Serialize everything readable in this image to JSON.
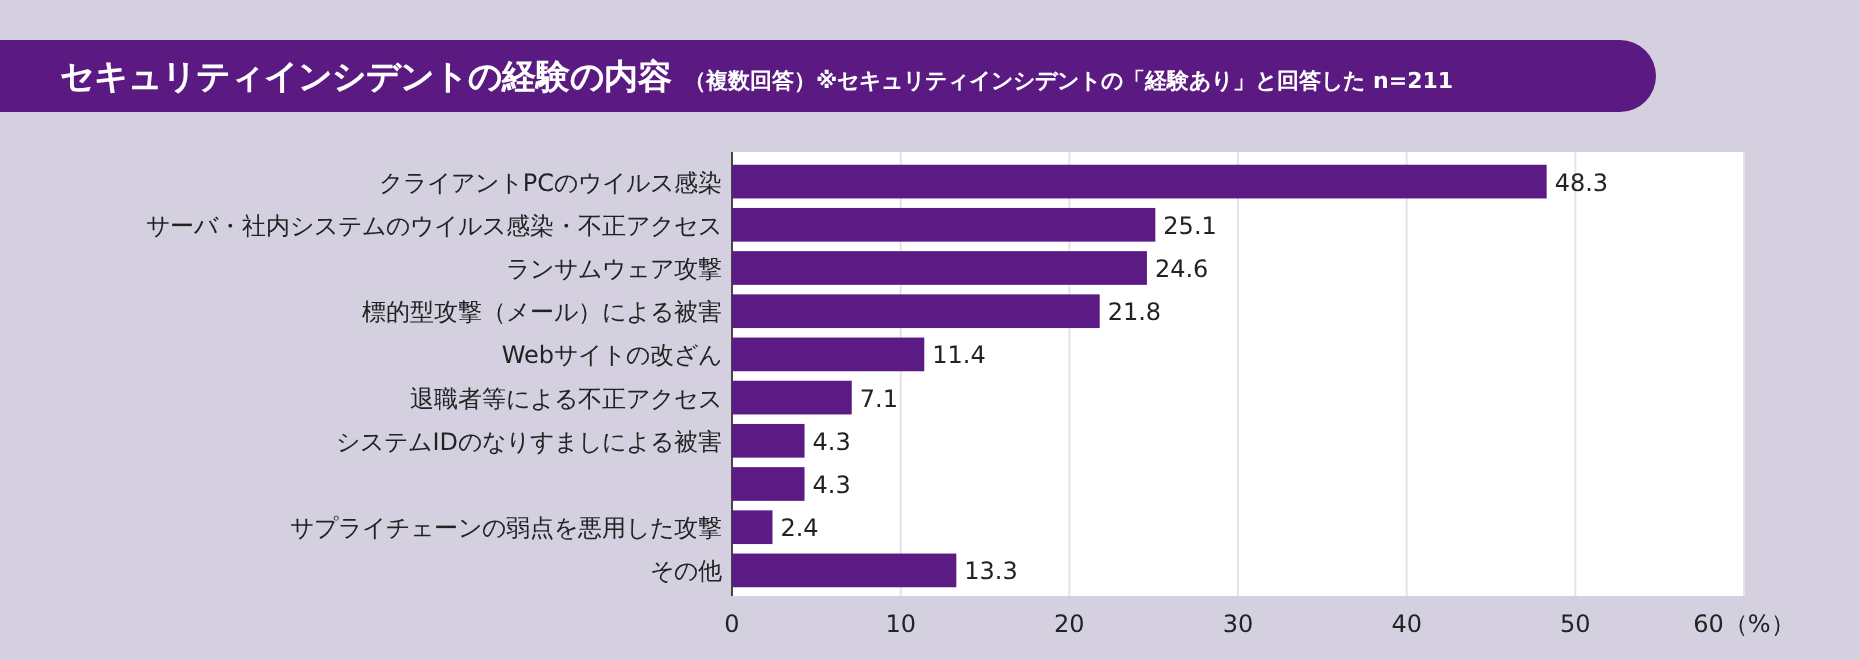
{
  "chart_data": {
    "type": "bar",
    "orientation": "horizontal",
    "title": "セキュリティインシデントの経験の内容",
    "subtitle": "（複数回答）※セキュリティインシデントの「経験あり」と回答した n=211",
    "categories": [
      "クライアントPCのウイルス感染",
      "サーバ・社内システムのウイルス感染・不正アクセス",
      "ランサムウェア攻撃",
      "標的型攻撃（メール）による被害",
      "Webサイトの改ざん",
      "退職者等による不正アクセス",
      "システムIDのなりすましによる被害",
      null,
      "サプライチェーンの弱点を悪用した攻撃",
      "その他"
    ],
    "values": [
      48.3,
      25.1,
      24.6,
      21.8,
      11.4,
      7.1,
      4.3,
      4.3,
      2.4,
      13.3
    ],
    "color": "#5c1a84",
    "xlim": [
      0,
      60
    ],
    "xticks": [
      0,
      10,
      20,
      30,
      40,
      50,
      {
        "value": 60,
        "label": "60（%）"
      }
    ],
    "grid": "x",
    "data_labels": true
  }
}
